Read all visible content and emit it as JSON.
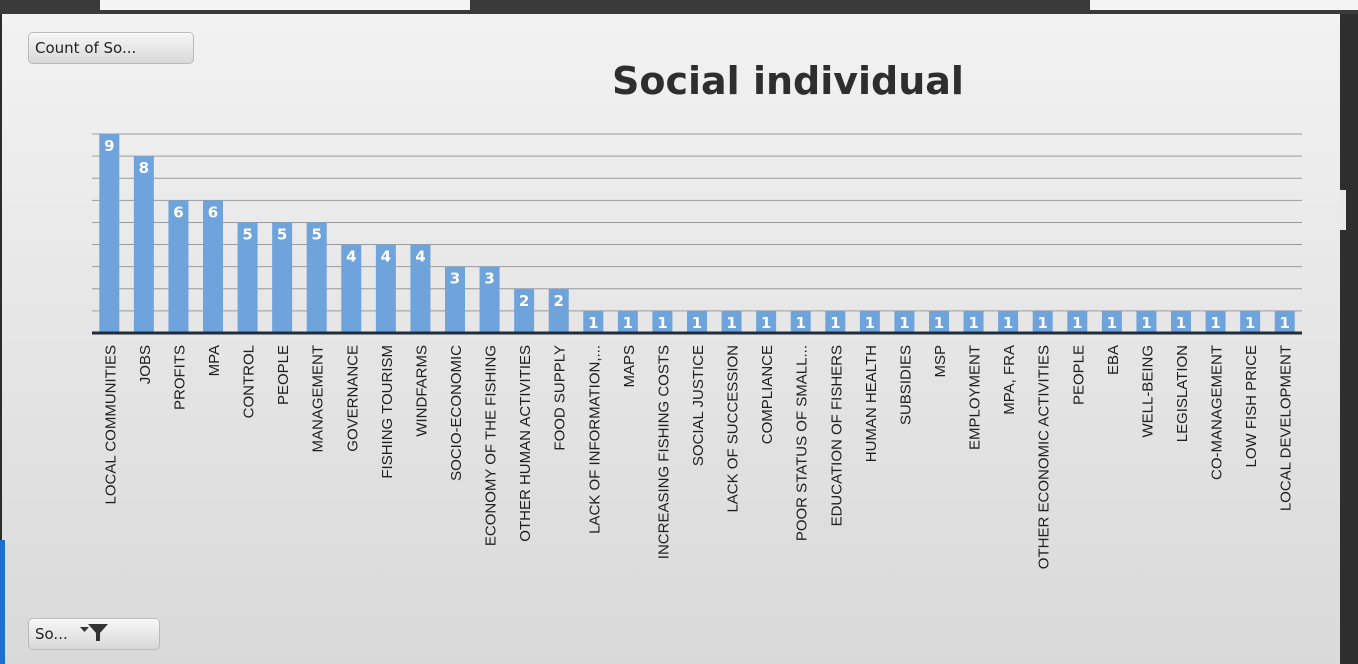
{
  "value_field_button": "Count of So...",
  "axis_field_button": "So...",
  "icons": {
    "axis_field_button": "filter-icon"
  },
  "colors": {
    "bar": "#6fa3dc",
    "data_label": "#ffffff",
    "gridline": "#9a9a9a",
    "axis": "#1f2d3d",
    "title": "#2e2e2e"
  },
  "chart_data": {
    "type": "bar",
    "title": "Social individual",
    "xlabel": "",
    "ylabel": "",
    "ylim": [
      0,
      9
    ],
    "grid": true,
    "data_labels": true,
    "categories": [
      "LOCAL COMMUNITIES",
      "JOBS",
      "PROFITS",
      "MPA",
      "CONTROL",
      "PEOPLE",
      "MANAGEMENT",
      "GOVERNANCE",
      "FISHING TOURISM",
      "WINDFARMS",
      "SOCIO-ECONOMIC",
      "ECONOMY OF THE FISHING",
      "OTHER HUMAN ACTIVITIES",
      "FOOD SUPPLY",
      "LACK OF INFORMATION,...",
      "MAPS",
      "INCREASING FISHING COSTS",
      "SOCIAL JUSTICE",
      "LACK OF SUCCESSION",
      "COMPLIANCE",
      "POOR STATUS OF SMALL...",
      "EDUCATION OF FISHERS",
      "HUMAN HEALTH",
      "SUBSIDIES",
      "MSP",
      "EMPLOYMENT",
      "MPA, FRA",
      "OTHER ECONOMIC ACTIVITIES",
      "PEOPLE",
      "EBA",
      "WELL-BEING",
      "LEGISLATION",
      "CO-MANAGEMENT",
      "LOW FISH PRICE",
      "LOCAL DEVELOPMENT"
    ],
    "values": [
      9,
      8,
      6,
      6,
      5,
      5,
      5,
      4,
      4,
      4,
      3,
      3,
      2,
      2,
      1,
      1,
      1,
      1,
      1,
      1,
      1,
      1,
      1,
      1,
      1,
      1,
      1,
      1,
      1,
      1,
      1,
      1,
      1,
      1,
      1
    ]
  }
}
